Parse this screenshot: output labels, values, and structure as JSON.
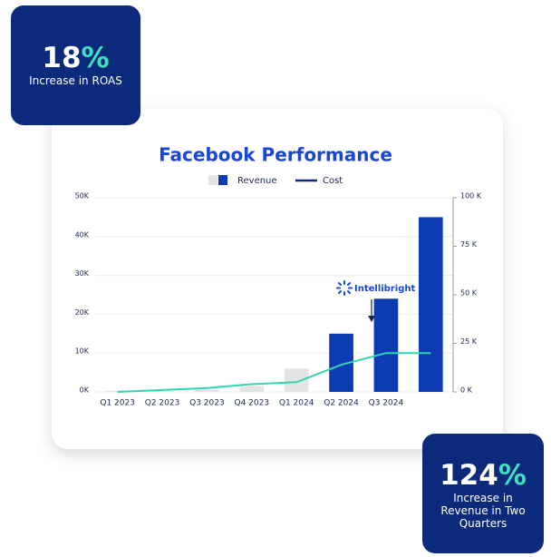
{
  "stats": [
    {
      "value": "18",
      "unit": "%",
      "label": "Increase in ROAS"
    },
    {
      "value": "124",
      "unit": "%",
      "label": "Increase in Revenue in Two Quarters"
    }
  ],
  "annotation": "Intellibright",
  "chart_data": {
    "type": "bar",
    "title": "Facebook Performance",
    "categories": [
      "Q1 2023",
      "Q2 2023",
      "Q3 2023",
      "Q4 2023",
      "Q1 2024",
      "Q2 2024",
      "Q3 2024",
      null
    ],
    "series": [
      {
        "name": "Revenue",
        "type": "bar",
        "colors": [
          "#e4e4e4",
          "#e4e4e4",
          "#e4e4e4",
          "#e4e4e4",
          "#e4e4e4",
          "#0d3bb5",
          "#0d3bb5",
          "#0d3bb5"
        ],
        "values": [
          300,
          300,
          500,
          1500,
          6000,
          15000,
          24000,
          45000
        ]
      },
      {
        "name": "Cost",
        "type": "line",
        "axis": "y2",
        "color": "#2fd6b0",
        "values": [
          0,
          1000,
          2000,
          4000,
          5000,
          14000,
          20000,
          20000
        ]
      }
    ],
    "ylim": [
      0,
      50000
    ],
    "yticks": [
      {
        "value": 0,
        "label": "0K"
      },
      {
        "value": 10000,
        "label": "10K"
      },
      {
        "value": 20000,
        "label": "20K"
      },
      {
        "value": 30000,
        "label": "30K"
      },
      {
        "value": 40000,
        "label": "40K"
      },
      {
        "value": 50000,
        "label": "50K"
      }
    ],
    "y2lim": [
      0,
      100000
    ],
    "y2ticks": [
      {
        "value": 0,
        "label": "0 K"
      },
      {
        "value": 25000,
        "label": "25 K"
      },
      {
        "value": 50000,
        "label": "50 K"
      },
      {
        "value": 75000,
        "label": "75 K"
      },
      {
        "value": 100000,
        "label": "100 K"
      }
    ],
    "grid": true
  }
}
